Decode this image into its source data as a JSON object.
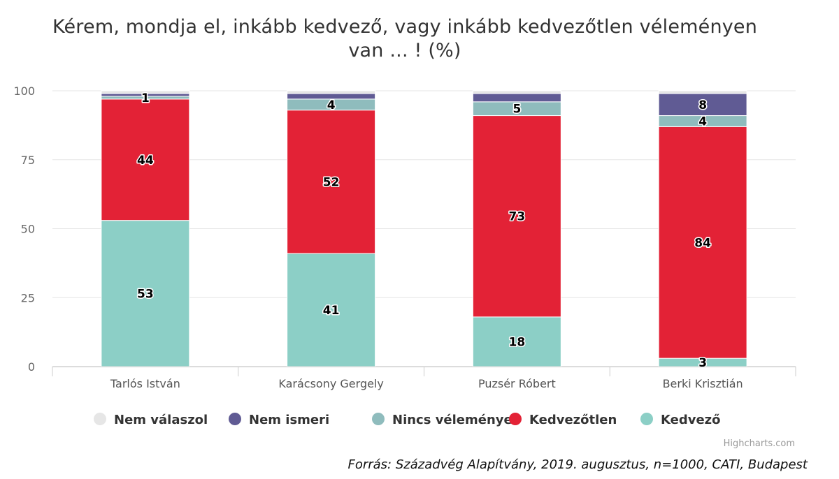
{
  "chart_data": {
    "type": "bar",
    "stacked": true,
    "title": "Kérem, mondja el, inkább kedvező, vagy inkább kedvezőtlen véleményen van ... ! (%)",
    "categories": [
      "Tarlós István",
      "Karácsony Gergely",
      "Puzsér Róbert",
      "Berki Krisztián"
    ],
    "ylim": [
      0,
      100
    ],
    "yticks": [
      0,
      25,
      50,
      75,
      100
    ],
    "grid": true,
    "legend_position": "bottom",
    "series": [
      {
        "name": "Kedvező",
        "color": "#8ccfc6",
        "values": [
          53,
          41,
          18,
          3
        ]
      },
      {
        "name": "Kedvezőtlen",
        "color": "#e32236",
        "values": [
          44,
          52,
          73,
          84
        ]
      },
      {
        "name": "Nincs véleménye",
        "color": "#8fbcbd",
        "values": [
          1,
          4,
          5,
          4
        ]
      },
      {
        "name": "Nem ismeri",
        "color": "#605b94",
        "values": [
          1,
          2,
          3,
          8
        ]
      },
      {
        "name": "Nem válaszol",
        "color": "#e6e6e6",
        "values": [
          1,
          1,
          1,
          1
        ]
      }
    ],
    "data_labels": [
      [
        "53",
        "44",
        "1",
        "",
        ""
      ],
      [
        "41",
        "52",
        "4",
        "",
        ""
      ],
      [
        "18",
        "73",
        "5",
        "",
        ""
      ],
      [
        "3",
        "84",
        "4",
        "8",
        ""
      ]
    ],
    "legend_order": [
      "Nem válaszol",
      "Nem ismeri",
      "Nincs véleménye",
      "Kedvezőtlen",
      "Kedvező"
    ]
  },
  "credits": "Highcharts.com",
  "source": "Forrás: Századvég Alapítvány, 2019. augusztus, n=1000, CATI, Budapest"
}
